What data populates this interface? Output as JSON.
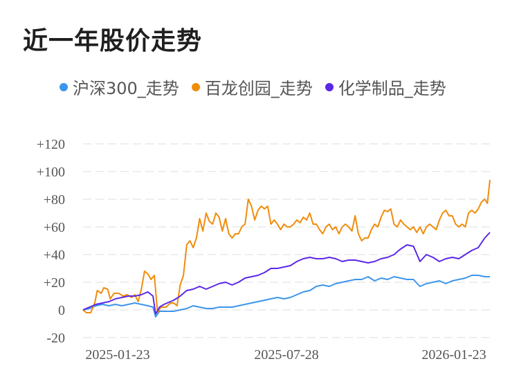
{
  "page": {
    "title": "近一年股价走势"
  },
  "legend": [
    {
      "label": "沪深300_走势",
      "color": "#3c95ec"
    },
    {
      "label": "百龙创园_走势",
      "color": "#f08c0a"
    },
    {
      "label": "化学制品_走势",
      "color": "#5a28e6"
    }
  ],
  "chart_data": {
    "type": "line",
    "title": "近一年股价走势",
    "xlabel": "",
    "ylabel": "",
    "x_ticks": [
      "2025-01-23",
      "2025-07-28",
      "2026-01-23"
    ],
    "y_ticks": [
      "+120",
      "+100",
      "+80",
      "+60",
      "+40",
      "+20",
      "0",
      "-20"
    ],
    "ylim": [
      -20,
      120
    ],
    "grid": true,
    "legend_position": "top",
    "series": [
      {
        "name": "沪深300_走势",
        "color": "#3c95ec",
        "points": [
          [
            0,
            0
          ],
          [
            10,
            1
          ],
          [
            20,
            3
          ],
          [
            30,
            4
          ],
          [
            40,
            3
          ],
          [
            50,
            4
          ],
          [
            60,
            3
          ],
          [
            70,
            4
          ],
          [
            80,
            5
          ],
          [
            90,
            4
          ],
          [
            100,
            3
          ],
          [
            108,
            2
          ],
          [
            112,
            -5
          ],
          [
            118,
            -1
          ],
          [
            130,
            -1
          ],
          [
            140,
            -1
          ],
          [
            150,
            0
          ],
          [
            160,
            1
          ],
          [
            170,
            3
          ],
          [
            180,
            2
          ],
          [
            190,
            1
          ],
          [
            200,
            1
          ],
          [
            210,
            2
          ],
          [
            220,
            2
          ],
          [
            230,
            2
          ],
          [
            240,
            3
          ],
          [
            250,
            4
          ],
          [
            260,
            5
          ],
          [
            270,
            6
          ],
          [
            280,
            7
          ],
          [
            290,
            8
          ],
          [
            300,
            9
          ],
          [
            310,
            8
          ],
          [
            320,
            9
          ],
          [
            330,
            11
          ],
          [
            340,
            13
          ],
          [
            350,
            14
          ],
          [
            360,
            17
          ],
          [
            370,
            18
          ],
          [
            380,
            17
          ],
          [
            390,
            19
          ],
          [
            400,
            20
          ],
          [
            410,
            21
          ],
          [
            420,
            22
          ],
          [
            430,
            22
          ],
          [
            440,
            24
          ],
          [
            450,
            21
          ],
          [
            460,
            23
          ],
          [
            470,
            22
          ],
          [
            480,
            24
          ],
          [
            490,
            23
          ],
          [
            500,
            22
          ],
          [
            510,
            22
          ],
          [
            520,
            17
          ],
          [
            530,
            19
          ],
          [
            540,
            20
          ],
          [
            550,
            21
          ],
          [
            560,
            19
          ],
          [
            570,
            21
          ],
          [
            580,
            22
          ],
          [
            590,
            23
          ],
          [
            600,
            25
          ],
          [
            610,
            25
          ],
          [
            620,
            24
          ],
          [
            628,
            24
          ]
        ]
      },
      {
        "name": "百龙创园_走势",
        "color": "#f08c0a",
        "points": [
          [
            0,
            0
          ],
          [
            5,
            -2
          ],
          [
            12,
            -2
          ],
          [
            18,
            5
          ],
          [
            22,
            14
          ],
          [
            28,
            12
          ],
          [
            32,
            16
          ],
          [
            38,
            15
          ],
          [
            42,
            8
          ],
          [
            48,
            12
          ],
          [
            55,
            12
          ],
          [
            62,
            10
          ],
          [
            68,
            11
          ],
          [
            75,
            9
          ],
          [
            80,
            11
          ],
          [
            85,
            6
          ],
          [
            90,
            15
          ],
          [
            95,
            28
          ],
          [
            100,
            26
          ],
          [
            105,
            22
          ],
          [
            110,
            25
          ],
          [
            115,
            -2
          ],
          [
            120,
            2
          ],
          [
            128,
            2
          ],
          [
            135,
            5
          ],
          [
            140,
            5
          ],
          [
            145,
            3
          ],
          [
            150,
            18
          ],
          [
            155,
            25
          ],
          [
            160,
            47
          ],
          [
            165,
            50
          ],
          [
            170,
            45
          ],
          [
            175,
            52
          ],
          [
            180,
            66
          ],
          [
            185,
            57
          ],
          [
            190,
            70
          ],
          [
            195,
            64
          ],
          [
            200,
            62
          ],
          [
            205,
            70
          ],
          [
            210,
            67
          ],
          [
            215,
            57
          ],
          [
            220,
            66
          ],
          [
            225,
            55
          ],
          [
            230,
            52
          ],
          [
            235,
            55
          ],
          [
            240,
            55
          ],
          [
            245,
            60
          ],
          [
            250,
            62
          ],
          [
            255,
            80
          ],
          [
            260,
            75
          ],
          [
            265,
            65
          ],
          [
            270,
            72
          ],
          [
            275,
            75
          ],
          [
            280,
            73
          ],
          [
            285,
            75
          ],
          [
            290,
            62
          ],
          [
            295,
            65
          ],
          [
            300,
            62
          ],
          [
            305,
            58
          ],
          [
            310,
            62
          ],
          [
            315,
            60
          ],
          [
            320,
            60
          ],
          [
            325,
            62
          ],
          [
            330,
            65
          ],
          [
            335,
            63
          ],
          [
            340,
            67
          ],
          [
            345,
            65
          ],
          [
            350,
            70
          ],
          [
            355,
            62
          ],
          [
            360,
            62
          ],
          [
            365,
            58
          ],
          [
            370,
            55
          ],
          [
            375,
            60
          ],
          [
            380,
            62
          ],
          [
            385,
            58
          ],
          [
            390,
            60
          ],
          [
            395,
            55
          ],
          [
            400,
            60
          ],
          [
            405,
            62
          ],
          [
            410,
            60
          ],
          [
            415,
            57
          ],
          [
            420,
            68
          ],
          [
            425,
            55
          ],
          [
            430,
            50
          ],
          [
            435,
            52
          ],
          [
            440,
            52
          ],
          [
            445,
            58
          ],
          [
            450,
            62
          ],
          [
            455,
            60
          ],
          [
            460,
            67
          ],
          [
            465,
            72
          ],
          [
            470,
            71
          ],
          [
            475,
            73
          ],
          [
            480,
            62
          ],
          [
            485,
            60
          ],
          [
            490,
            65
          ],
          [
            495,
            62
          ],
          [
            500,
            60
          ],
          [
            505,
            58
          ],
          [
            510,
            60
          ],
          [
            515,
            56
          ],
          [
            520,
            60
          ],
          [
            525,
            55
          ],
          [
            530,
            60
          ],
          [
            535,
            62
          ],
          [
            540,
            60
          ],
          [
            545,
            58
          ],
          [
            550,
            65
          ],
          [
            555,
            70
          ],
          [
            560,
            72
          ],
          [
            565,
            68
          ],
          [
            570,
            68
          ],
          [
            575,
            62
          ],
          [
            580,
            60
          ],
          [
            585,
            62
          ],
          [
            590,
            60
          ],
          [
            595,
            70
          ],
          [
            600,
            72
          ],
          [
            605,
            70
          ],
          [
            610,
            73
          ],
          [
            615,
            78
          ],
          [
            620,
            80
          ],
          [
            624,
            77
          ],
          [
            628,
            94
          ]
        ]
      },
      {
        "name": "化学制品_走势",
        "color": "#5a28e6",
        "points": [
          [
            0,
            0
          ],
          [
            10,
            2
          ],
          [
            20,
            4
          ],
          [
            30,
            5
          ],
          [
            40,
            6
          ],
          [
            50,
            8
          ],
          [
            60,
            9
          ],
          [
            70,
            10
          ],
          [
            80,
            10
          ],
          [
            90,
            11
          ],
          [
            100,
            13
          ],
          [
            108,
            10
          ],
          [
            112,
            -3
          ],
          [
            118,
            2
          ],
          [
            125,
            4
          ],
          [
            130,
            5
          ],
          [
            140,
            7
          ],
          [
            150,
            10
          ],
          [
            160,
            14
          ],
          [
            170,
            15
          ],
          [
            180,
            17
          ],
          [
            190,
            15
          ],
          [
            200,
            17
          ],
          [
            210,
            19
          ],
          [
            220,
            20
          ],
          [
            230,
            18
          ],
          [
            240,
            20
          ],
          [
            250,
            23
          ],
          [
            260,
            24
          ],
          [
            270,
            25
          ],
          [
            280,
            27
          ],
          [
            290,
            30
          ],
          [
            300,
            30
          ],
          [
            310,
            31
          ],
          [
            320,
            32
          ],
          [
            330,
            35
          ],
          [
            340,
            37
          ],
          [
            350,
            38
          ],
          [
            360,
            37
          ],
          [
            370,
            37
          ],
          [
            380,
            38
          ],
          [
            390,
            37
          ],
          [
            400,
            35
          ],
          [
            410,
            36
          ],
          [
            420,
            36
          ],
          [
            430,
            35
          ],
          [
            440,
            34
          ],
          [
            450,
            35
          ],
          [
            460,
            37
          ],
          [
            470,
            38
          ],
          [
            480,
            40
          ],
          [
            490,
            44
          ],
          [
            500,
            47
          ],
          [
            510,
            46
          ],
          [
            520,
            35
          ],
          [
            530,
            40
          ],
          [
            540,
            38
          ],
          [
            550,
            35
          ],
          [
            560,
            37
          ],
          [
            570,
            38
          ],
          [
            580,
            37
          ],
          [
            590,
            40
          ],
          [
            600,
            43
          ],
          [
            610,
            45
          ],
          [
            620,
            52
          ],
          [
            628,
            56
          ]
        ]
      }
    ]
  }
}
